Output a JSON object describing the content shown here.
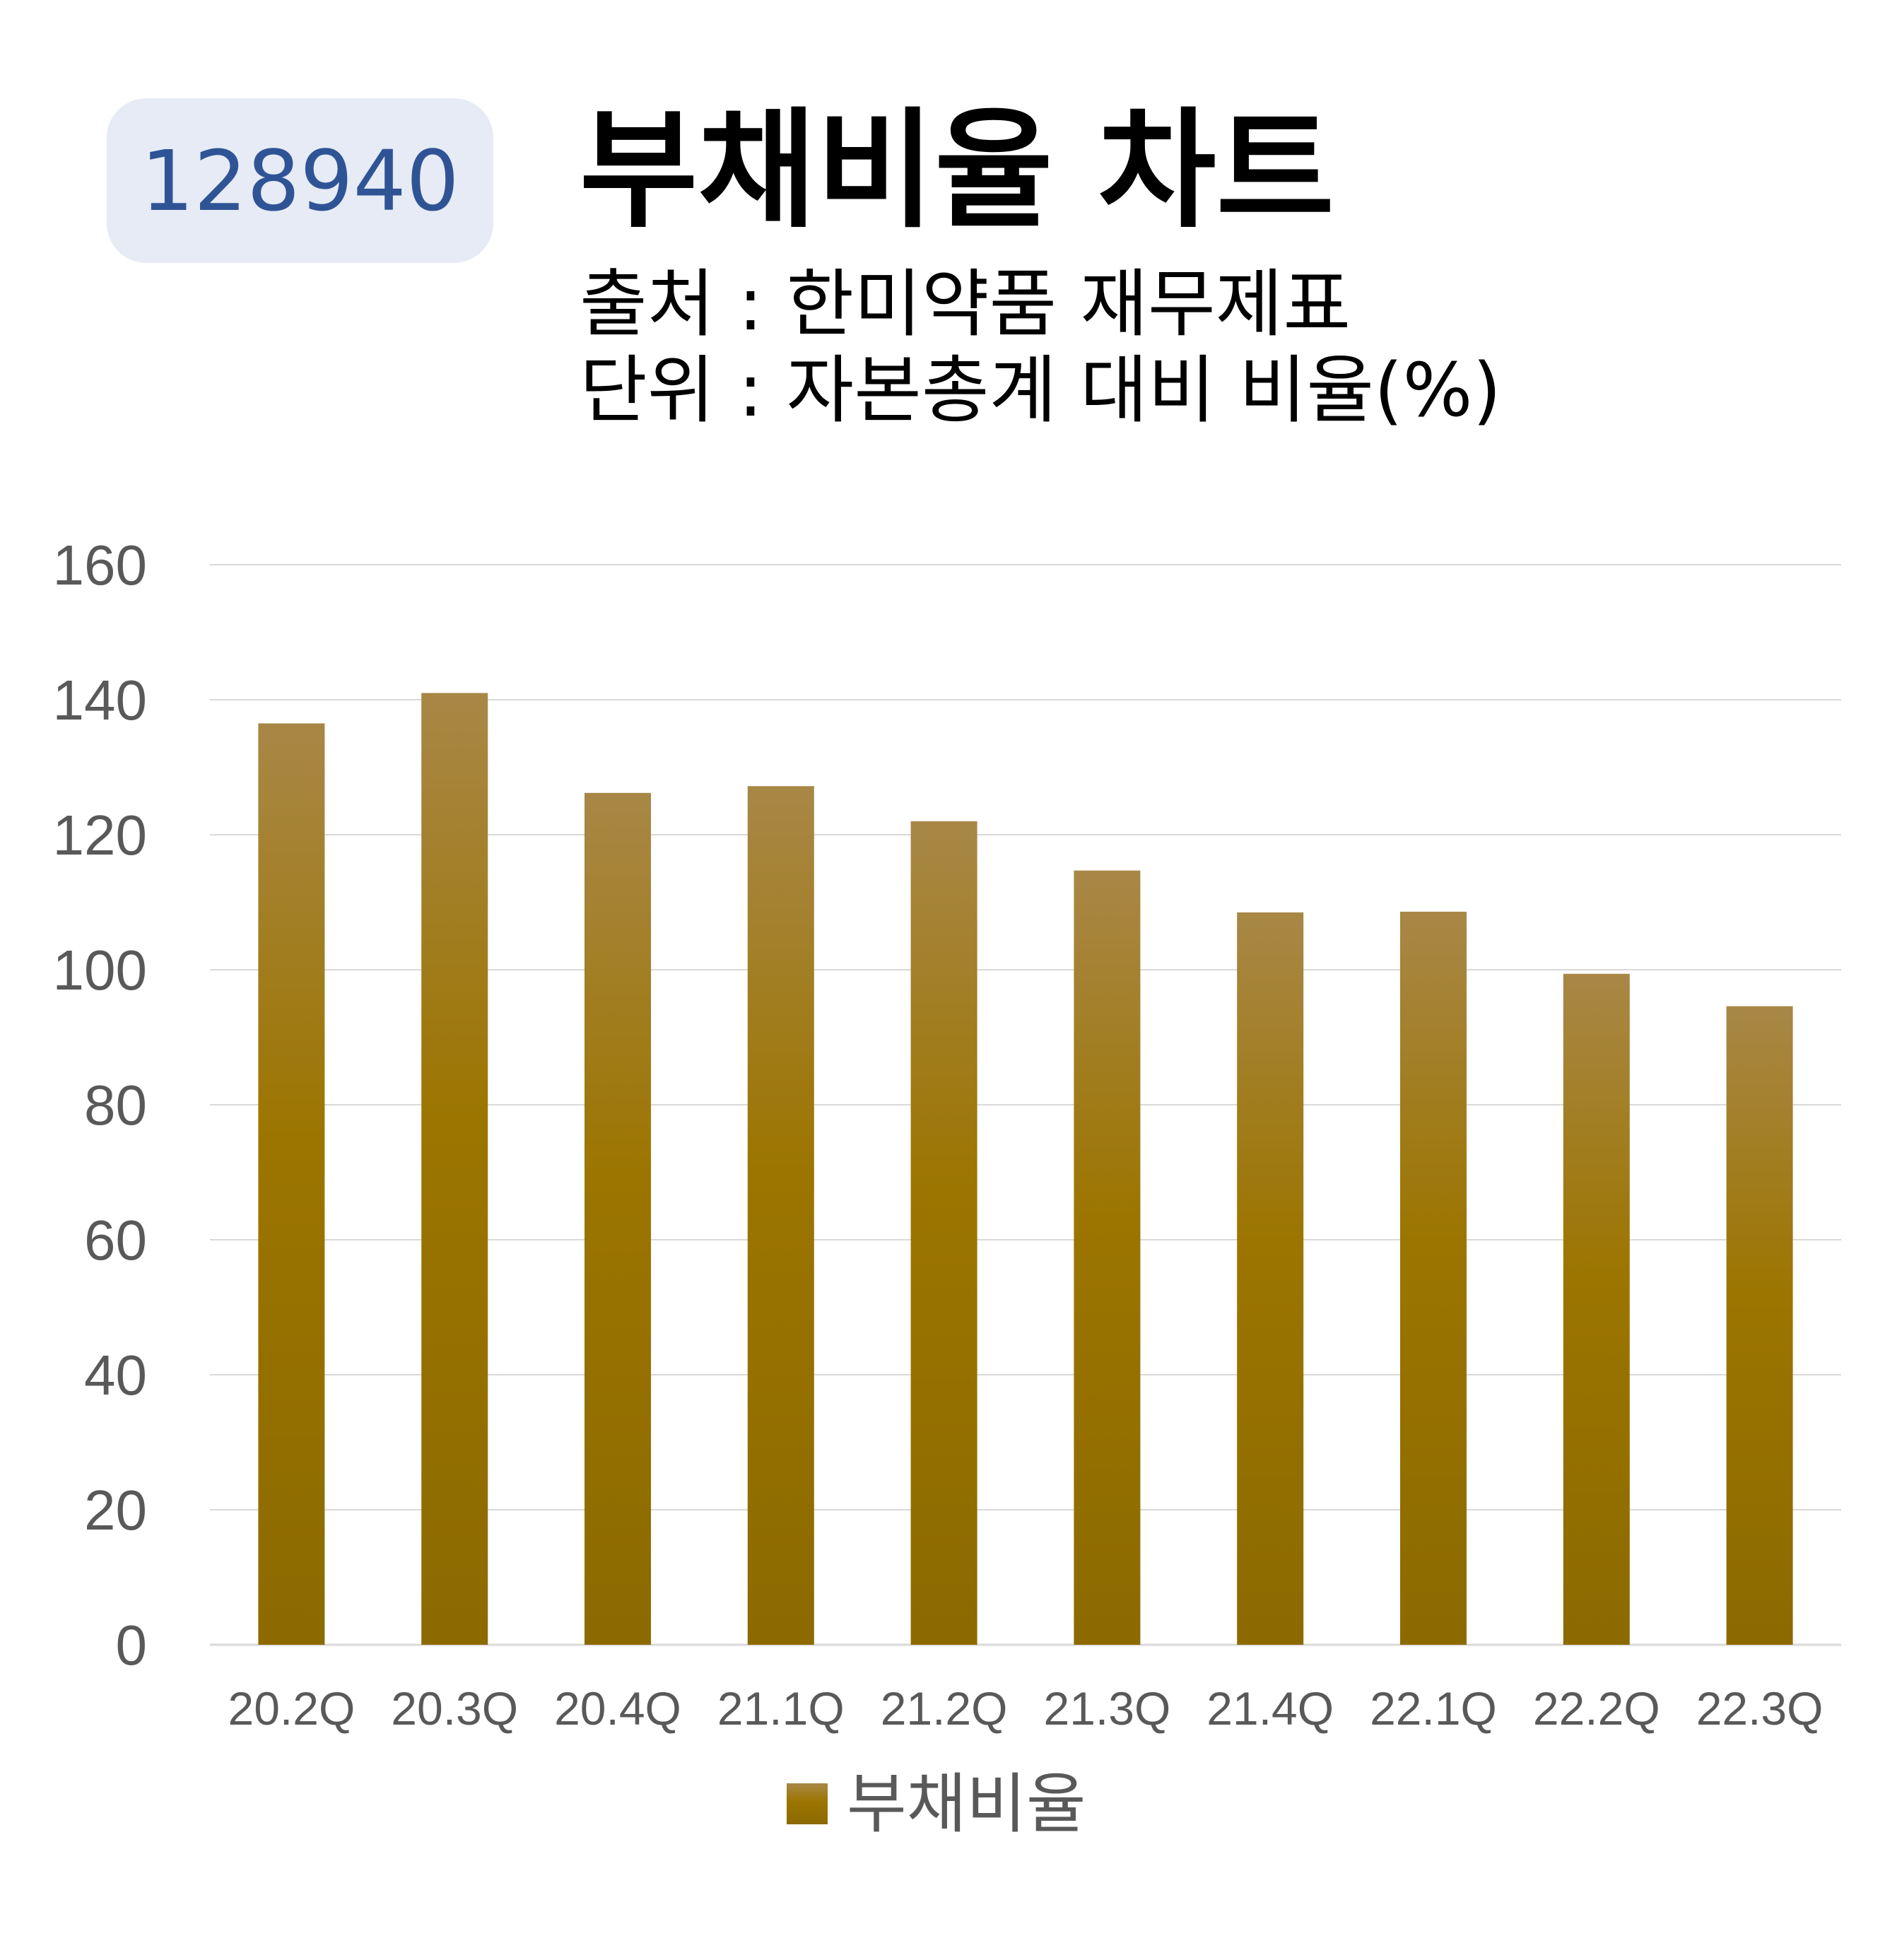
{
  "badge": {
    "code": "128940"
  },
  "header": {
    "title": "부채비율 차트",
    "source": "출처 : 한미약품 재무제표",
    "unit": "단위 : 자본총계 대비 비율(%)"
  },
  "colors": {
    "bar_top": "#a88746",
    "bar_mid": "#9c7500",
    "bar_bottom": "#8c6a00",
    "grid": "#d9d9d9",
    "axis_text": "#595959",
    "badge_bg": "#e6ebf5",
    "badge_text": "#2f5496"
  },
  "chart_data": {
    "type": "bar",
    "categories": [
      "20.2Q",
      "20.3Q",
      "20.4Q",
      "21.1Q",
      "21.2Q",
      "21.3Q",
      "21.4Q",
      "22.1Q",
      "22.2Q",
      "22.3Q"
    ],
    "series": [
      {
        "name": "부채비율",
        "values": [
          136.5,
          141,
          126.2,
          127.2,
          122,
          114.7,
          108.5,
          108.6,
          99.4,
          94.6
        ]
      }
    ],
    "ylim": [
      0,
      160
    ],
    "yticks": [
      "0",
      "20",
      "40",
      "60",
      "80",
      "100",
      "120",
      "140",
      "160"
    ],
    "grid": true,
    "legend": "bottom"
  }
}
